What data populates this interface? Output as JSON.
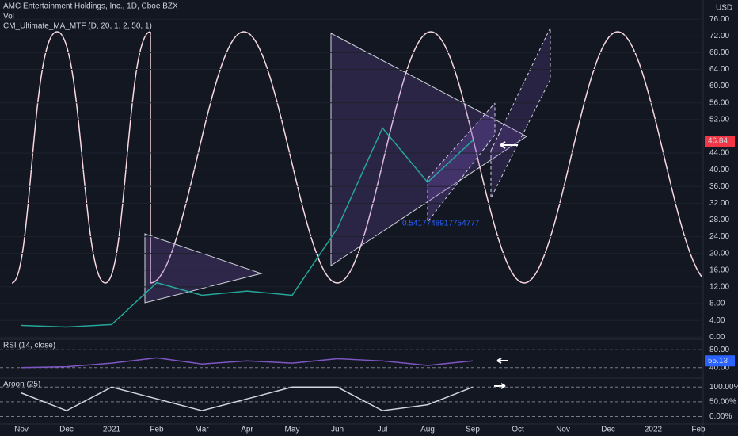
{
  "header": {
    "symbol": "AMC Entertainment Holdings, Inc., 1D, Cboe BZX",
    "volume": "Vol",
    "study": "CM_Ultimate_MA_MTF (D, 20, 1, 2, 50, 1)",
    "currency": "USD",
    "annotation": "0.5417748917754777"
  },
  "chart_data": [
    {
      "type": "line",
      "title": "AMC Entertainment Holdings, Inc., 1D, Cboe BZX",
      "color": "#26a69a",
      "categories": [
        "Nov",
        "Dec",
        "2021",
        "Feb",
        "Mar",
        "Apr",
        "May",
        "Jun",
        "Jul",
        "Aug",
        "Sep",
        "Oct",
        "Nov",
        "Dec",
        "2022",
        "Feb"
      ],
      "values": [
        2.8,
        2.4,
        3,
        13,
        10,
        11,
        10,
        26,
        50,
        37,
        47,
        null,
        null,
        null,
        null,
        null
      ],
      "last_price": 46.84,
      "ylim": [
        -2.8,
        80.2
      ],
      "yticks": [
        {
          "value": 0,
          "label": "0.00"
        },
        {
          "value": 4,
          "label": "4.00"
        },
        {
          "value": 8,
          "label": "8.00"
        },
        {
          "value": 12,
          "label": "12.00"
        },
        {
          "value": 16,
          "label": "16.00"
        },
        {
          "value": 20,
          "label": "20.00"
        },
        {
          "value": 24,
          "label": "24.00"
        },
        {
          "value": 28,
          "label": "28.00"
        },
        {
          "value": 32,
          "label": "32.00"
        },
        {
          "value": 36,
          "label": "36.00"
        },
        {
          "value": 40,
          "label": "40.00"
        },
        {
          "value": 44,
          "label": "44.00"
        },
        {
          "value": 52,
          "label": "52.00"
        },
        {
          "value": 56,
          "label": "56.00"
        },
        {
          "value": 60,
          "label": "60.00"
        },
        {
          "value": 64,
          "label": "64.00"
        },
        {
          "value": 68,
          "label": "68.00"
        },
        {
          "value": 72,
          "label": "72.00"
        },
        {
          "value": 76,
          "label": "76.00"
        }
      ],
      "grid": true
    },
    {
      "type": "line",
      "title": "RSI (14, close)",
      "color": "#7e57c2",
      "values": [
        40,
        42,
        50,
        62,
        48,
        55,
        50,
        60,
        55,
        45,
        55.13,
        null,
        null,
        null,
        null,
        null
      ],
      "last_value": 55.13,
      "ylim": [
        20,
        100
      ],
      "yticks": [
        {
          "value": 40,
          "label": "40.00"
        },
        {
          "value": 80,
          "label": "80.00"
        }
      ],
      "grid": false
    },
    {
      "type": "line",
      "title": "Aroon (25)",
      "color": "#d1d4dc",
      "values": [
        80,
        20,
        100,
        60,
        20,
        60,
        100,
        100,
        20,
        40,
        100,
        null,
        null,
        null,
        null,
        null
      ],
      "ylim": [
        -20,
        125
      ],
      "yticks": [
        {
          "value": 0,
          "label": "0.00%"
        },
        {
          "value": 50,
          "label": "50.00%"
        },
        {
          "value": 100,
          "label": "100.00%"
        }
      ],
      "grid": false
    }
  ]
}
